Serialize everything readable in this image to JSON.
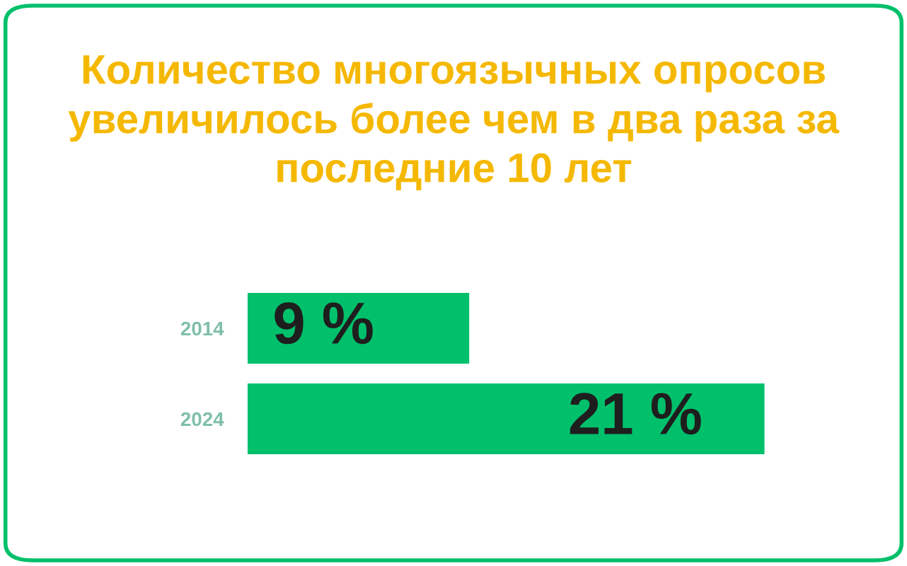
{
  "chart_data": {
    "type": "bar",
    "orientation": "horizontal",
    "title": "Количество многоязычных опросов увеличилось более чем в два раза за последние 10 лет",
    "categories": [
      "2014",
      "2024"
    ],
    "values": [
      9,
      21
    ],
    "color": "#00c06b",
    "value_labels": [
      "9 %",
      "21 %"
    ],
    "tick_labels": "y",
    "grid": false,
    "legend": false
  }
}
